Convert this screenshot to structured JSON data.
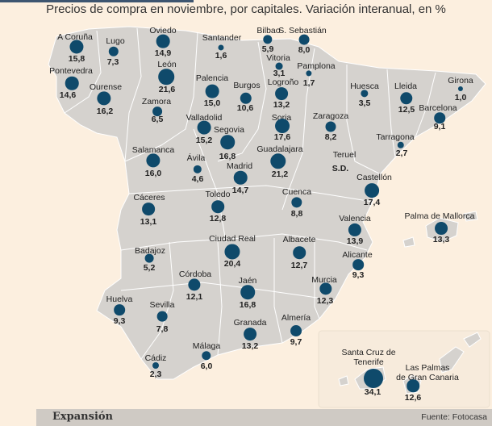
{
  "title": "Precios de compra en noviembre, por capitales. Variación interanual, en %",
  "colors": {
    "background": "#fcefdf",
    "land": "#d5d2ce",
    "borders": "#ffffff",
    "bubble": "#0f4a6b"
  },
  "cities": [
    {
      "name": "A Coruña",
      "value": "15,8"
    },
    {
      "name": "Lugo",
      "value": "7,3"
    },
    {
      "name": "Oviedo",
      "value": "14,9"
    },
    {
      "name": "Santander",
      "value": "1,6"
    },
    {
      "name": "Bilbao",
      "value": "5,9"
    },
    {
      "name": "S. Sebastián",
      "value": "8,0"
    },
    {
      "name": "Vitoria",
      "value": "3,1"
    },
    {
      "name": "Pamplona",
      "value": "1,7"
    },
    {
      "name": "León",
      "value": "21,6"
    },
    {
      "name": "Pontevedra",
      "value": "14,6"
    },
    {
      "name": "Ourense",
      "value": "16,2"
    },
    {
      "name": "Palencia",
      "value": "15,0"
    },
    {
      "name": "Burgos",
      "value": "10,6"
    },
    {
      "name": "Logroño",
      "value": "13,2"
    },
    {
      "name": "Huesca",
      "value": "3,5"
    },
    {
      "name": "Lleida",
      "value": "12,5"
    },
    {
      "name": "Girona",
      "value": "1,0"
    },
    {
      "name": "Zamora",
      "value": "6,5"
    },
    {
      "name": "Barcelona",
      "value": "9,1"
    },
    {
      "name": "Valladolid",
      "value": "15,2"
    },
    {
      "name": "Segovia",
      "value": "16,8"
    },
    {
      "name": "Soria",
      "value": "17,6"
    },
    {
      "name": "Zaragoza",
      "value": "8,2"
    },
    {
      "name": "Tarragona",
      "value": "2,7"
    },
    {
      "name": "Salamanca",
      "value": "16,0"
    },
    {
      "name": "Ávila",
      "value": "4,6"
    },
    {
      "name": "Guadalajara",
      "value": "21,2"
    },
    {
      "name": "Teruel",
      "value": "S.D."
    },
    {
      "name": "Madrid",
      "value": "14,7"
    },
    {
      "name": "Castellón",
      "value": "17,4"
    },
    {
      "name": "Cáceres",
      "value": "13,1"
    },
    {
      "name": "Toledo",
      "value": "12,8"
    },
    {
      "name": "Cuenca",
      "value": "8,8"
    },
    {
      "name": "Palma de Mallorca",
      "value": "13,3"
    },
    {
      "name": "Valencia",
      "value": "13,9"
    },
    {
      "name": "Badajoz",
      "value": "5,2"
    },
    {
      "name": "Ciudad Real",
      "value": "20,4"
    },
    {
      "name": "Albacete",
      "value": "12,7"
    },
    {
      "name": "Alicante",
      "value": "9,3"
    },
    {
      "name": "Córdoba",
      "value": "12,1"
    },
    {
      "name": "Jaén",
      "value": "16,8"
    },
    {
      "name": "Murcia",
      "value": "12,3"
    },
    {
      "name": "Huelva",
      "value": "9,3"
    },
    {
      "name": "Sevilla",
      "value": "7,8"
    },
    {
      "name": "Granada",
      "value": "13,2"
    },
    {
      "name": "Almería",
      "value": "9,7"
    },
    {
      "name": "Málaga",
      "value": "6,0"
    },
    {
      "name": "Cádiz",
      "value": "2,3"
    },
    {
      "name": "Santa Cruz de\nTenerife",
      "value": "34,1"
    },
    {
      "name": "Las Palmas\nde Gran Canaria",
      "value": "12,6"
    }
  ],
  "footer": {
    "brand": "Expansión",
    "source": "Fuente: Fotocasa"
  }
}
